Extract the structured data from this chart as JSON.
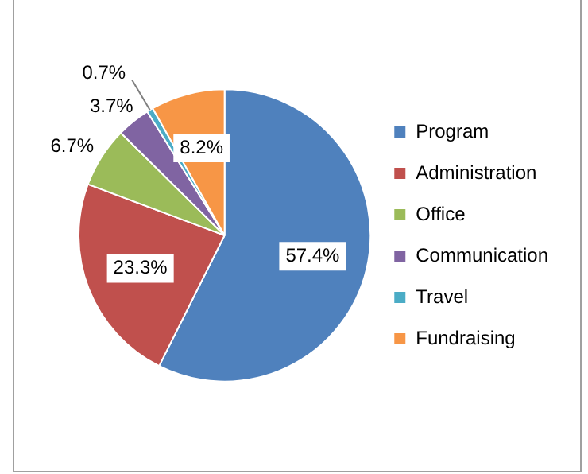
{
  "chart_data": {
    "type": "pie",
    "categories": [
      "Program",
      "Administration",
      "Office",
      "Communication",
      "Travel",
      "Fundraising"
    ],
    "values": [
      57.4,
      23.3,
      6.7,
      3.7,
      0.7,
      8.2
    ],
    "colors": [
      "#4f81bd",
      "#c0504d",
      "#9bbb59",
      "#8064a2",
      "#4bacc6",
      "#f79646"
    ],
    "value_labels": [
      "57.4%",
      "23.3%",
      "6.7%",
      "3.7%",
      "0.7%",
      "8.2%"
    ],
    "legend": "right"
  }
}
